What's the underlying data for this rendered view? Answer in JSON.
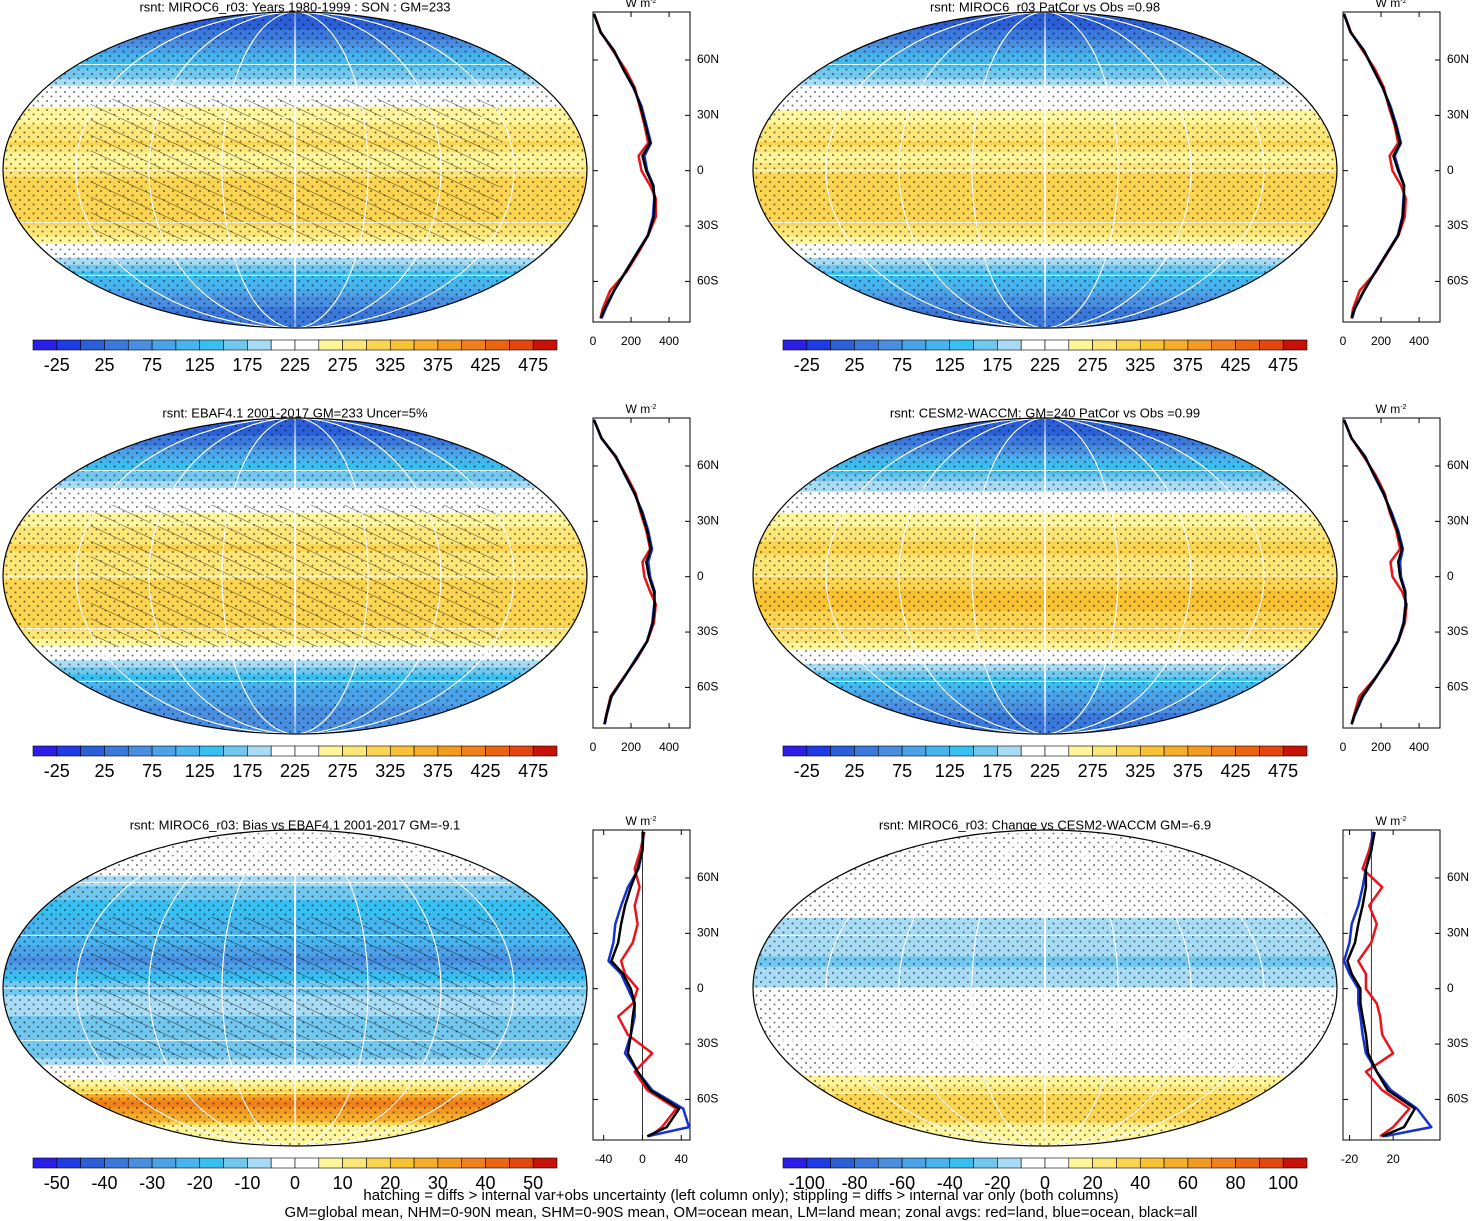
{
  "chart_data": [
    {
      "type": "map",
      "title": "rsnt: MIROC6_r03: Years 1980-1999 : SON : GM=233",
      "units": {
        "base": "W m",
        "exp": "-2"
      },
      "lat": [
        85,
        75,
        65,
        55,
        45,
        35,
        25,
        15,
        8,
        0,
        -8,
        -15,
        -25,
        -35,
        -45,
        -55,
        -65,
        -75,
        -80
      ],
      "series": [
        {
          "color": "#e8141e",
          "values": [
            5,
            42,
            105,
            170,
            220,
            245,
            270,
            290,
            240,
            255,
            300,
            330,
            330,
            290,
            235,
            175,
            90,
            50,
            40
          ]
        },
        {
          "color": "#1432d2",
          "values": [
            5,
            40,
            112,
            158,
            212,
            255,
            280,
            305,
            270,
            285,
            318,
            322,
            315,
            288,
            228,
            170,
            112,
            65,
            45
          ]
        },
        {
          "color": "#000000",
          "values": [
            5,
            40,
            110,
            160,
            215,
            250,
            275,
            300,
            260,
            280,
            315,
            325,
            320,
            290,
            230,
            170,
            110,
            60,
            40
          ]
        }
      ],
      "xlim": [
        0,
        510
      ],
      "xticks": [
        0,
        200,
        400
      ],
      "ylim": [
        -82,
        86
      ],
      "yticks": [
        {
          "value": 60,
          "label": "60N"
        },
        {
          "value": 30,
          "label": "30N"
        },
        0,
        {
          "value": -30,
          "label": "30S"
        },
        {
          "value": -60,
          "label": "60S"
        }
      ],
      "colorbar": {
        "lim": [
          -50,
          500
        ],
        "ticks": [
          -25,
          25,
          75,
          125,
          175,
          225,
          275,
          325,
          375,
          425,
          475
        ],
        "colors": [
          "#2b1ee6",
          "#1e3ce6",
          "#2a5fd8",
          "#3a78dc",
          "#4a8ee0",
          "#4aa3e8",
          "#48b4ee",
          "#36bff0",
          "#72c7ee",
          "#a8dcf4",
          "#ffffff",
          "#ffffff",
          "#fff59a",
          "#fde678",
          "#fbd452",
          "#f8c234",
          "#f6ae2a",
          "#f39a22",
          "#f0801c",
          "#ea6414",
          "#e5460e",
          "#c81208"
        ]
      }
    },
    {
      "type": "map",
      "title": "rsnt: MIROC6_r03 PatCor vs Obs =0.98",
      "units": {
        "base": "W m",
        "exp": "-2"
      },
      "lat": [
        85,
        75,
        65,
        55,
        45,
        35,
        25,
        15,
        8,
        0,
        -8,
        -15,
        -25,
        -35,
        -45,
        -55,
        -65,
        -75,
        -80
      ],
      "series": [
        {
          "color": "#e8141e",
          "values": [
            5,
            42,
            104,
            168,
            215,
            240,
            270,
            290,
            245,
            260,
            305,
            330,
            325,
            292,
            232,
            172,
            88,
            52,
            45
          ]
        },
        {
          "color": "#1432d2",
          "values": [
            5,
            40,
            112,
            158,
            208,
            250,
            280,
            305,
            272,
            295,
            322,
            318,
            312,
            288,
            228,
            168,
            112,
            62,
            48
          ]
        },
        {
          "color": "#000000",
          "values": [
            5,
            40,
            110,
            160,
            210,
            245,
            275,
            300,
            265,
            290,
            320,
            320,
            315,
            290,
            230,
            170,
            110,
            60,
            45
          ]
        }
      ],
      "xlim": [
        0,
        510
      ],
      "xticks": [
        0,
        200,
        400
      ],
      "ylim": [
        -82,
        86
      ],
      "yticks": [
        {
          "value": 60,
          "label": "60N"
        },
        {
          "value": 30,
          "label": "30N"
        },
        0,
        {
          "value": -30,
          "label": "30S"
        },
        {
          "value": -60,
          "label": "60S"
        }
      ],
      "colorbar": {
        "lim": [
          -50,
          500
        ],
        "ticks": [
          -25,
          25,
          75,
          125,
          175,
          225,
          275,
          325,
          375,
          425,
          475
        ],
        "colors": [
          "#2b1ee6",
          "#1e3ce6",
          "#2a5fd8",
          "#3a78dc",
          "#4a8ee0",
          "#4aa3e8",
          "#48b4ee",
          "#36bff0",
          "#72c7ee",
          "#a8dcf4",
          "#ffffff",
          "#ffffff",
          "#fff59a",
          "#fde678",
          "#fbd452",
          "#f8c234",
          "#f6ae2a",
          "#f39a22",
          "#f0801c",
          "#ea6414",
          "#e5460e",
          "#c81208"
        ]
      }
    },
    {
      "type": "map",
      "title": "rsnt: EBAF4.1 2001-2017 GM=233 Uncer=5%",
      "units": {
        "base": "W m",
        "exp": "-2"
      },
      "lat": [
        85,
        75,
        65,
        55,
        45,
        35,
        25,
        15,
        8,
        0,
        -8,
        -15,
        -25,
        -35,
        -45,
        -55,
        -65,
        -75,
        -80
      ],
      "series": [
        {
          "color": "#e8141e",
          "values": [
            5,
            46,
            118,
            175,
            225,
            250,
            280,
            300,
            260,
            270,
            300,
            330,
            320,
            285,
            228,
            158,
            92,
            70,
            60
          ]
        },
        {
          "color": "#1432d2",
          "values": [
            5,
            44,
            122,
            168,
            218,
            260,
            290,
            310,
            290,
            300,
            325,
            322,
            312,
            284,
            222,
            162,
            98,
            72,
            62
          ]
        },
        {
          "color": "#000000",
          "values": [
            5,
            45,
            120,
            170,
            220,
            255,
            285,
            305,
            280,
            295,
            320,
            325,
            315,
            285,
            225,
            160,
            95,
            70,
            60
          ]
        }
      ],
      "xlim": [
        0,
        510
      ],
      "xticks": [
        0,
        200,
        400
      ],
      "ylim": [
        -82,
        86
      ],
      "yticks": [
        {
          "value": 60,
          "label": "60N"
        },
        {
          "value": 30,
          "label": "30N"
        },
        0,
        {
          "value": -30,
          "label": "30S"
        },
        {
          "value": -60,
          "label": "60S"
        }
      ],
      "colorbar": {
        "lim": [
          -50,
          500
        ],
        "ticks": [
          -25,
          25,
          75,
          125,
          175,
          225,
          275,
          325,
          375,
          425,
          475
        ],
        "colors": [
          "#2b1ee6",
          "#1e3ce6",
          "#2a5fd8",
          "#3a78dc",
          "#4a8ee0",
          "#4aa3e8",
          "#48b4ee",
          "#36bff0",
          "#72c7ee",
          "#a8dcf4",
          "#ffffff",
          "#ffffff",
          "#fff59a",
          "#fde678",
          "#fbd452",
          "#f8c234",
          "#f6ae2a",
          "#f39a22",
          "#f0801c",
          "#ea6414",
          "#e5460e",
          "#c81208"
        ]
      }
    },
    {
      "type": "map",
      "title": "rsnt: CESM2-WACCM: GM=240 PatCor vs Obs =0.99",
      "units": {
        "base": "W m",
        "exp": "-2"
      },
      "lat": [
        85,
        75,
        65,
        55,
        45,
        35,
        25,
        15,
        8,
        0,
        -8,
        -15,
        -25,
        -35,
        -45,
        -55,
        -65,
        -75,
        -80
      ],
      "series": [
        {
          "color": "#e8141e",
          "values": [
            5,
            46,
            110,
            172,
            220,
            245,
            280,
            300,
            250,
            260,
            310,
            335,
            325,
            290,
            238,
            168,
            85,
            58,
            45
          ]
        },
        {
          "color": "#1432d2",
          "values": [
            5,
            44,
            118,
            162,
            212,
            255,
            290,
            315,
            300,
            305,
            328,
            328,
            318,
            288,
            232,
            172,
            105,
            62,
            46
          ]
        },
        {
          "color": "#000000",
          "values": [
            5,
            45,
            115,
            165,
            215,
            250,
            285,
            310,
            290,
            300,
            325,
            330,
            320,
            290,
            235,
            170,
            100,
            60,
            45
          ]
        }
      ],
      "xlim": [
        0,
        510
      ],
      "xticks": [
        0,
        200,
        400
      ],
      "ylim": [
        -82,
        86
      ],
      "yticks": [
        {
          "value": 60,
          "label": "60N"
        },
        {
          "value": 30,
          "label": "30N"
        },
        0,
        {
          "value": -30,
          "label": "30S"
        },
        {
          "value": -60,
          "label": "60S"
        }
      ],
      "colorbar": {
        "lim": [
          -50,
          500
        ],
        "ticks": [
          -25,
          25,
          75,
          125,
          175,
          225,
          275,
          325,
          375,
          425,
          475
        ],
        "colors": [
          "#2b1ee6",
          "#1e3ce6",
          "#2a5fd8",
          "#3a78dc",
          "#4a8ee0",
          "#4aa3e8",
          "#48b4ee",
          "#36bff0",
          "#72c7ee",
          "#a8dcf4",
          "#ffffff",
          "#ffffff",
          "#fff59a",
          "#fde678",
          "#fbd452",
          "#f8c234",
          "#f6ae2a",
          "#f39a22",
          "#f0801c",
          "#ea6414",
          "#e5460e",
          "#c81208"
        ]
      }
    },
    {
      "type": "map",
      "title": "rsnt: MIROC6_r03: Bias vs EBAF4.1 2001-2017  GM=-9.1",
      "units": {
        "base": "W m",
        "exp": "-2"
      },
      "lat": [
        85,
        75,
        65,
        55,
        45,
        35,
        25,
        15,
        8,
        0,
        -8,
        -15,
        -25,
        -35,
        -45,
        -55,
        -65,
        -75,
        -80
      ],
      "series": [
        {
          "color": "#e8141e",
          "values": [
            2,
            -2,
            -8,
            -3,
            -8,
            -5,
            -10,
            -22,
            -18,
            -5,
            -10,
            -25,
            -15,
            10,
            -8,
            5,
            35,
            20,
            8
          ]
        },
        {
          "color": "#1432d2",
          "values": [
            0,
            0,
            -4,
            -15,
            -22,
            -28,
            -30,
            -35,
            -22,
            -15,
            -8,
            -8,
            -12,
            -18,
            -5,
            10,
            42,
            48,
            5
          ]
        },
        {
          "color": "#000000",
          "values": [
            1,
            0,
            -5,
            -12,
            -18,
            -22,
            -25,
            -32,
            -20,
            -12,
            -8,
            -10,
            -12,
            -15,
            -5,
            8,
            38,
            25,
            5
          ]
        }
      ],
      "xlim": [
        -51,
        49
      ],
      "xticks": [
        -40,
        0,
        40
      ],
      "ylim": [
        -82,
        86
      ],
      "yticks": [
        {
          "value": 60,
          "label": "60N"
        },
        {
          "value": 30,
          "label": "30N"
        },
        0,
        {
          "value": -30,
          "label": "30S"
        },
        {
          "value": -60,
          "label": "60S"
        }
      ],
      "colorbar": {
        "lim": [
          -55,
          55
        ],
        "ticks": [
          -50,
          -40,
          -30,
          -20,
          -10,
          0,
          10,
          20,
          30,
          40,
          50
        ],
        "colors": [
          "#2b1ee6",
          "#1e3ce6",
          "#2a5fd8",
          "#3a78dc",
          "#4a8ee0",
          "#4aa3e8",
          "#48b4ee",
          "#36bff0",
          "#72c7ee",
          "#a8dcf4",
          "#ffffff",
          "#ffffff",
          "#fff59a",
          "#fde678",
          "#fbd452",
          "#f8c234",
          "#f6ae2a",
          "#f39a22",
          "#f0801c",
          "#ea6414",
          "#e5460e",
          "#c81208"
        ]
      }
    },
    {
      "type": "map",
      "title": "rsnt: MIROC6_r03: Change vs CESM2-WACCM GM=-6.9",
      "units": {
        "base": "W m",
        "exp": "-2"
      },
      "lat": [
        85,
        75,
        65,
        55,
        45,
        35,
        25,
        15,
        8,
        0,
        -8,
        -15,
        -25,
        -35,
        -45,
        -55,
        -65,
        -75,
        -80
      ],
      "series": [
        {
          "color": "#e8141e",
          "values": [
            2,
            -2,
            -8,
            10,
            -2,
            5,
            0,
            -12,
            -5,
            -5,
            5,
            8,
            10,
            20,
            -5,
            10,
            35,
            20,
            8
          ]
        },
        {
          "color": "#1432d2",
          "values": [
            1,
            0,
            -5,
            -8,
            -12,
            -18,
            -20,
            -25,
            -20,
            -12,
            -12,
            -10,
            -8,
            -5,
            5,
            18,
            42,
            55,
            12
          ]
        },
        {
          "color": "#000000",
          "values": [
            3,
            0,
            -5,
            -5,
            -8,
            -12,
            -15,
            -22,
            -18,
            -10,
            -10,
            -8,
            -5,
            -3,
            5,
            15,
            40,
            30,
            10
          ]
        }
      ],
      "xlim": [
        -26,
        63
      ],
      "xticks": [
        -20,
        20
      ],
      "ylim": [
        -82,
        86
      ],
      "yticks": [
        {
          "value": 60,
          "label": "60N"
        },
        {
          "value": 30,
          "label": "30N"
        },
        0,
        {
          "value": -30,
          "label": "30S"
        },
        {
          "value": -60,
          "label": "60S"
        }
      ],
      "colorbar": {
        "lim": [
          -110,
          110
        ],
        "ticks": [
          -100,
          -80,
          -60,
          -40,
          -20,
          0,
          20,
          40,
          60,
          80,
          100
        ],
        "colors": [
          "#2b1ee6",
          "#1e3ce6",
          "#2a5fd8",
          "#3a78dc",
          "#4a8ee0",
          "#4aa3e8",
          "#48b4ee",
          "#36bff0",
          "#72c7ee",
          "#a8dcf4",
          "#ffffff",
          "#ffffff",
          "#fff59a",
          "#fde678",
          "#fbd452",
          "#f8c234",
          "#f6ae2a",
          "#f39a22",
          "#f0801c",
          "#ea6414",
          "#e5460e",
          "#c81208"
        ]
      }
    }
  ],
  "footnotes": [
    "hatching = diffs > internal var+obs uncertainty (left column only); stippling = diffs > internal var only (both columns)",
    "GM=global mean, NHM=0-90N mean, SHM=0-90S mean, OM=ocean mean, LM=land mean; zonal avgs: red=land, blue=ocean, black=all"
  ]
}
